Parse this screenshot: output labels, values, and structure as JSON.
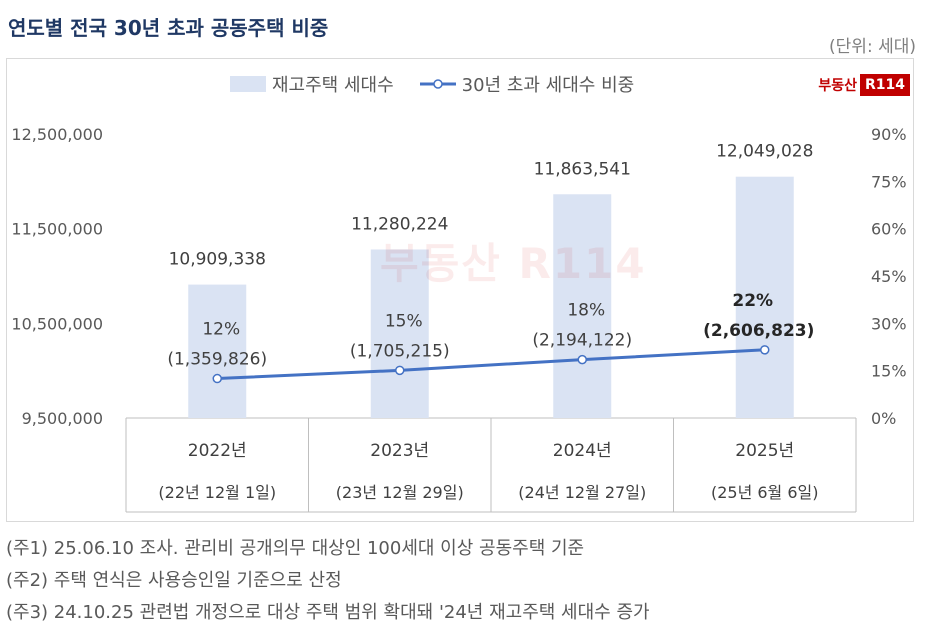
{
  "title": "연도별 전국 30년 초과 공동주택 비중",
  "unit": "(단위: 세대)",
  "logo": {
    "text": "부동산",
    "badge": "R114"
  },
  "footnotes": [
    "(주1) 25.06.10 조사. 관리비 공개의무 대상인 100세대 이상 공동주택 기준",
    "(주2) 주택 연식은 사용승인일 기준으로 산정",
    "(주3) 24.10.25 관련법 개정으로 대상 주택 범위 확대돼 '24년 재고주택 세대수 증가"
  ],
  "colors": {
    "bar": "#dae3f3",
    "line": "#4472c4",
    "title": "#1f3864",
    "logo": "#c00000"
  },
  "chart_data": {
    "type": "bar+line",
    "categories": [
      "2022년",
      "2023년",
      "2024년",
      "2025년"
    ],
    "sublabels": [
      "(22년 12월 1일)",
      "(23년 12월 29일)",
      "(24년 12월 27일)",
      "(25년 6월 6일)"
    ],
    "series": [
      {
        "name": "재고주택 세대수",
        "type": "bar",
        "axis": "left",
        "values": [
          10909338,
          11280224,
          11863541,
          12049028
        ],
        "labels": [
          "10,909,338",
          "11,280,224",
          "11,863,541",
          "12,049,028"
        ]
      },
      {
        "name": "30년 초과 세대수 비중",
        "type": "line",
        "axis": "right",
        "values": [
          12.5,
          15.1,
          18.5,
          21.6
        ],
        "pct_labels": [
          "12%",
          "15%",
          "18%",
          "22%"
        ],
        "count_labels": [
          "(1,359,826)",
          "(1,705,215)",
          "(2,194,122)",
          "(2,606,823)"
        ],
        "counts": [
          1359826,
          1705215,
          2194122,
          2606823
        ]
      }
    ],
    "y_left": {
      "min": 9500000,
      "max": 12500000,
      "ticks": [
        "9,500,000",
        "10,500,000",
        "11,500,000",
        "12,500,000"
      ]
    },
    "y_right": {
      "min": 0,
      "max": 90,
      "ticks": [
        "0%",
        "15%",
        "30%",
        "45%",
        "60%",
        "75%",
        "90%"
      ]
    },
    "legend": "top"
  }
}
